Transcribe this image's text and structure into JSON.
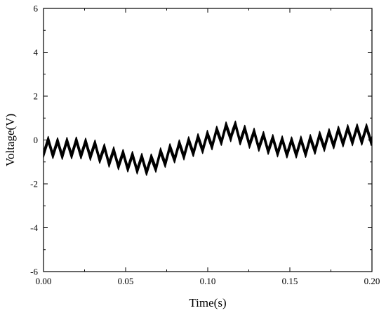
{
  "chart_data": {
    "type": "line",
    "title": "",
    "xlabel": "Time(s)",
    "ylabel": "Voltage(V)",
    "xlim": [
      0.0,
      0.2
    ],
    "ylim": [
      -6,
      6
    ],
    "x_ticks": [
      "0.00",
      "0.05",
      "0.10",
      "0.15",
      "0.20"
    ],
    "y_ticks": [
      "6",
      "4",
      "2",
      "0",
      "-2",
      "-4",
      "-6"
    ],
    "grid": false,
    "legend": "none",
    "line_color": "#000000",
    "series": [
      {
        "name": "",
        "band_width": 0.3,
        "ripple_period": 0.0057,
        "ripple_amplitude": 0.35,
        "envelope_x": [
          0.0,
          0.01,
          0.02,
          0.03,
          0.04,
          0.05,
          0.06,
          0.065,
          0.07,
          0.08,
          0.09,
          0.1,
          0.11,
          0.115,
          0.12,
          0.13,
          0.14,
          0.15,
          0.16,
          0.17,
          0.18,
          0.19,
          0.2
        ],
        "envelope_y": [
          -0.3,
          -0.4,
          -0.35,
          -0.45,
          -0.75,
          -0.95,
          -1.1,
          -1.15,
          -0.9,
          -0.55,
          -0.3,
          -0.05,
          0.3,
          0.45,
          0.25,
          0.0,
          -0.25,
          -0.35,
          -0.3,
          -0.05,
          0.15,
          0.25,
          0.25
        ]
      }
    ]
  }
}
